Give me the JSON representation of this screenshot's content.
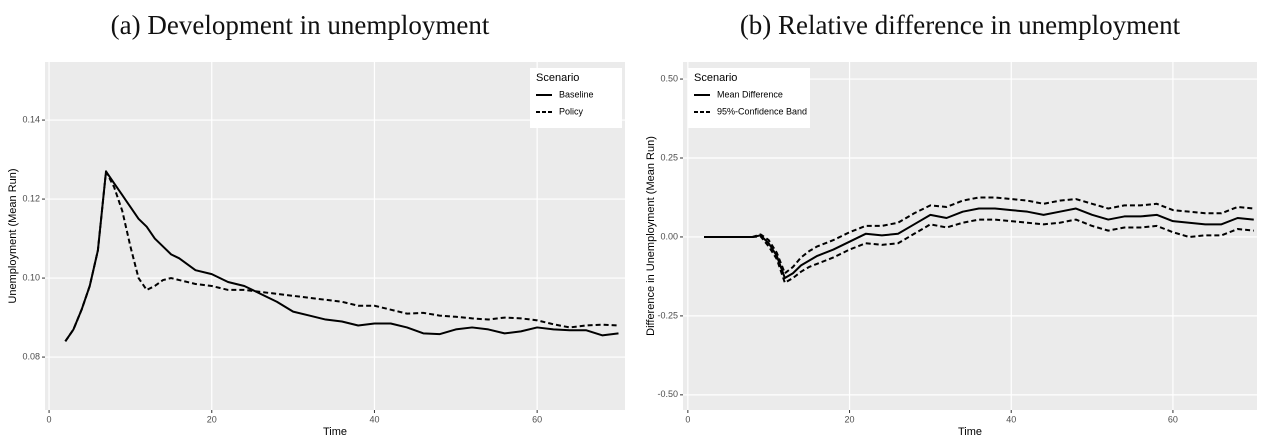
{
  "chart_data": [
    {
      "type": "line",
      "title": "(a) Development in unemployment",
      "x_label": "Time",
      "y_label": "Unemployment (Mean Run)",
      "legend_title": "Scenario",
      "legend_position": "top-right",
      "grid": true,
      "xlim": [
        -0.5,
        70.8
      ],
      "ylim": [
        0.0666,
        0.1547
      ],
      "xticks": [
        0,
        20,
        40,
        60
      ],
      "yticks": [
        0.08,
        {
          "value": 0.1,
          "label": "0.10"
        },
        0.12,
        0.14
      ],
      "x": [
        2,
        3,
        4,
        5,
        6,
        7,
        8,
        9,
        10,
        11,
        12,
        13,
        14,
        15,
        16,
        18,
        20,
        22,
        24,
        26,
        28,
        30,
        32,
        34,
        36,
        38,
        40,
        42,
        44,
        46,
        48,
        50,
        52,
        54,
        56,
        58,
        60,
        62,
        64,
        66,
        68,
        70
      ],
      "series": [
        {
          "name": "Baseline",
          "color": "#000000",
          "dash": "solid",
          "values": [
            0.084,
            0.087,
            0.092,
            0.098,
            0.107,
            0.127,
            0.124,
            0.121,
            0.118,
            0.115,
            0.113,
            0.11,
            0.108,
            0.106,
            0.105,
            0.102,
            0.101,
            0.099,
            0.098,
            0.096,
            0.094,
            0.0915,
            0.0905,
            0.0895,
            0.089,
            0.088,
            0.0885,
            0.0885,
            0.0875,
            0.086,
            0.0858,
            0.087,
            0.0875,
            0.087,
            0.086,
            0.0865,
            0.0875,
            0.087,
            0.0868,
            0.0868,
            0.0855,
            0.086
          ]
        },
        {
          "name": "Policy",
          "color": "#000000",
          "dash": "dashed",
          "values": [
            0.084,
            0.087,
            0.092,
            0.098,
            0.107,
            0.127,
            0.123,
            0.117,
            0.108,
            0.1,
            0.097,
            0.098,
            0.0995,
            0.1,
            0.0995,
            0.0985,
            0.098,
            0.097,
            0.097,
            0.0965,
            0.096,
            0.0955,
            0.095,
            0.0945,
            0.094,
            0.093,
            0.093,
            0.092,
            0.091,
            0.0912,
            0.0905,
            0.0902,
            0.0898,
            0.0895,
            0.09,
            0.0898,
            0.0893,
            0.0883,
            0.0875,
            0.088,
            0.0882,
            0.088
          ]
        }
      ]
    },
    {
      "type": "line",
      "title": "(b) Relative difference in unemployment",
      "x_label": "Time",
      "y_label": "Difference in Unemployment (Mean Run)",
      "legend_title": "Scenario",
      "legend_position": "top-left",
      "grid": true,
      "xlim": [
        -0.6,
        70.4
      ],
      "ylim": [
        -0.548,
        0.554
      ],
      "xticks": [
        0,
        20,
        40,
        60
      ],
      "yticks": [
        {
          "value": -0.5,
          "label": "-0.50"
        },
        -0.25,
        {
          "value": 0,
          "label": "0.00"
        },
        0.25,
        {
          "value": 0.5,
          "label": "0.50"
        }
      ],
      "x": [
        2,
        3,
        4,
        5,
        6,
        7,
        8,
        9,
        10,
        11,
        12,
        13,
        14,
        15,
        16,
        18,
        20,
        22,
        24,
        26,
        28,
        30,
        32,
        34,
        36,
        38,
        40,
        42,
        44,
        46,
        48,
        50,
        52,
        54,
        56,
        58,
        60,
        62,
        64,
        66,
        68,
        70
      ],
      "series": [
        {
          "name": "Mean Difference",
          "color": "#000000",
          "dash": "solid",
          "values": [
            0,
            0,
            0,
            0,
            0,
            0,
            0,
            0.005,
            -0.02,
            -0.06,
            -0.13,
            -0.115,
            -0.09,
            -0.075,
            -0.06,
            -0.04,
            -0.015,
            0.01,
            0.005,
            0.01,
            0.04,
            0.07,
            0.06,
            0.08,
            0.09,
            0.09,
            0.085,
            0.08,
            0.07,
            0.08,
            0.09,
            0.07,
            0.055,
            0.065,
            0.065,
            0.07,
            0.05,
            0.045,
            0.04,
            0.04,
            0.06,
            0.055
          ]
        },
        {
          "name": "95%-Confidence Band",
          "color": "#000000",
          "dash": "dashed",
          "upper": [
            0,
            0,
            0,
            0,
            0,
            0,
            0,
            0.008,
            -0.01,
            -0.05,
            -0.115,
            -0.095,
            -0.065,
            -0.045,
            -0.03,
            -0.01,
            0.015,
            0.035,
            0.035,
            0.045,
            0.075,
            0.1,
            0.095,
            0.115,
            0.125,
            0.125,
            0.12,
            0.115,
            0.105,
            0.115,
            0.12,
            0.105,
            0.09,
            0.1,
            0.1,
            0.105,
            0.085,
            0.08,
            0.075,
            0.075,
            0.095,
            0.09
          ],
          "lower": [
            0,
            0,
            0,
            0,
            0,
            0,
            0,
            0.002,
            -0.03,
            -0.07,
            -0.145,
            -0.13,
            -0.11,
            -0.095,
            -0.085,
            -0.065,
            -0.04,
            -0.02,
            -0.025,
            -0.02,
            0.01,
            0.04,
            0.03,
            0.045,
            0.055,
            0.055,
            0.05,
            0.045,
            0.04,
            0.045,
            0.055,
            0.035,
            0.02,
            0.03,
            0.03,
            0.035,
            0.015,
            0,
            0.005,
            0.005,
            0.025,
            0.02
          ]
        }
      ]
    }
  ]
}
